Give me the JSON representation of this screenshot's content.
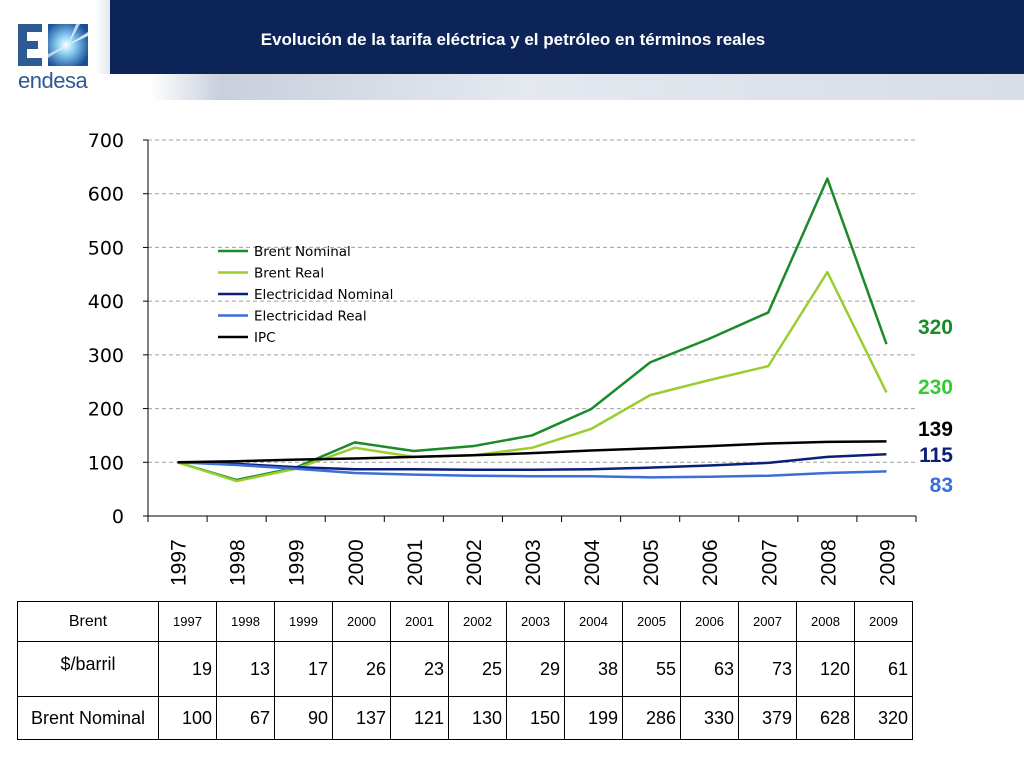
{
  "header": {
    "title": "Evolución de la tarifa eléctrica y el petróleo en términos reales",
    "logo_text": "endesa"
  },
  "chart_data": {
    "type": "line",
    "title": "",
    "xlabel": "",
    "ylabel": "",
    "x": [
      "1997",
      "1998",
      "1999",
      "2000",
      "2001",
      "2002",
      "2003",
      "2004",
      "2005",
      "2006",
      "2007",
      "2008",
      "2009"
    ],
    "ylim": [
      0,
      700
    ],
    "yticks": [
      0,
      100,
      200,
      300,
      400,
      500,
      600,
      700
    ],
    "grid": true,
    "legend_position": "top-left",
    "series": [
      {
        "name": "Brent Nominal",
        "color": "#1a8a2a",
        "values": [
          100,
          67,
          90,
          137,
          121,
          130,
          150,
          199,
          286,
          330,
          379,
          628,
          320
        ]
      },
      {
        "name": "Brent Real",
        "color": "#9acd32",
        "values": [
          100,
          65,
          88,
          127,
          110,
          113,
          127,
          162,
          225,
          253,
          279,
          454,
          230
        ]
      },
      {
        "name": "Electricidad Nominal",
        "color": "#0a1f78",
        "values": [
          100,
          97,
          91,
          87,
          87,
          86,
          86,
          87,
          90,
          94,
          99,
          110,
          115
        ]
      },
      {
        "name": "Electricidad Real",
        "color": "#3a6fd8",
        "values": [
          100,
          95,
          88,
          80,
          77,
          75,
          74,
          74,
          72,
          73,
          75,
          80,
          83
        ]
      },
      {
        "name": "IPC",
        "color": "#000000",
        "values": [
          100,
          102,
          105,
          107,
          110,
          113,
          117,
          122,
          126,
          130,
          135,
          138,
          139
        ]
      }
    ],
    "end_labels": [
      {
        "text": "320",
        "color": "#1a8a2a",
        "value": 320
      },
      {
        "text": "230",
        "color": "#33cc33",
        "value": 230
      },
      {
        "text": "139",
        "color": "#000000",
        "value": 139
      },
      {
        "text": "115",
        "color": "#0a1f78",
        "value": 115
      },
      {
        "text": "83",
        "color": "#3a6fd8",
        "value": 83
      }
    ]
  },
  "table": {
    "corner_label": "Brent",
    "years": [
      "1997",
      "1998",
      "1999",
      "2000",
      "2001",
      "2002",
      "2003",
      "2004",
      "2005",
      "2006",
      "2007",
      "2008",
      "2009"
    ],
    "rows": [
      {
        "label": "$/barril",
        "values": [
          "19",
          "13",
          "17",
          "26",
          "23",
          "25",
          "29",
          "38",
          "55",
          "63",
          "73",
          "120",
          "61"
        ]
      },
      {
        "label": "Brent Nominal",
        "values": [
          "100",
          "67",
          "90",
          "137",
          "121",
          "130",
          "150",
          "199",
          "286",
          "330",
          "379",
          "628",
          "320"
        ]
      }
    ]
  }
}
